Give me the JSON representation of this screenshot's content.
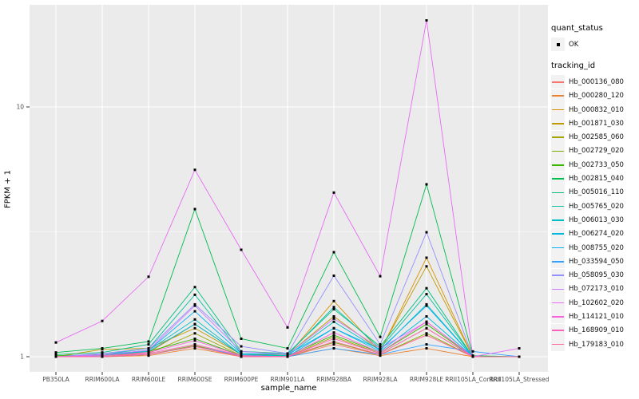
{
  "figure": {
    "background": "#FFFFFF",
    "panel_background": "#EBEBEB",
    "gridline_color": "#FFFFFF",
    "tick_color": "#333333",
    "tick_label_color": "#4D4D4D",
    "axis_title_color": "#000000",
    "point_color": "#000000"
  },
  "chart_data": {
    "type": "line",
    "title": "",
    "xlabel": "sample_name",
    "ylabel": "FPKM + 1",
    "y_scale": "log10",
    "y_ticks": [
      "1",
      "10"
    ],
    "y_minor": [
      3.1623
    ],
    "ylim": [
      0.87,
      25.5
    ],
    "grid": "major-and-minor",
    "legend_position": "right",
    "categories": [
      "PB350LA",
      "RRIM600LA",
      "RRIM600LE",
      "RRIM600SE",
      "RRIM600PE",
      "RRIM901LA",
      "RRIM928BA",
      "RRIM928LA",
      "RRIM928LE",
      "RRII105LA_Control",
      "RRII105LA_Stressed"
    ],
    "legend": {
      "quant_status_title": "quant_status",
      "quant_status_items": [
        {
          "label": "OK"
        }
      ],
      "tracking_title": "tracking_id"
    },
    "series": [
      {
        "name": "Hb_000136_080",
        "color": "#F8766D",
        "values": [
          1.0,
          1.0,
          1.02,
          1.1,
          1.0,
          1.0,
          1.12,
          1.02,
          1.22,
          1.0,
          1.0
        ]
      },
      {
        "name": "Hb_000280_120",
        "color": "#EA8331",
        "values": [
          1.0,
          1.0,
          1.01,
          1.08,
          1.0,
          1.0,
          1.08,
          1.01,
          1.08,
          1.0,
          1.0
        ]
      },
      {
        "name": "Hb_000832_010",
        "color": "#D89000",
        "values": [
          1.0,
          1.02,
          1.04,
          1.35,
          1.02,
          1.01,
          1.67,
          1.05,
          2.49,
          1.0,
          1.0
        ]
      },
      {
        "name": "Hb_001871_030",
        "color": "#C09B00",
        "values": [
          1.0,
          1.07,
          1.08,
          1.3,
          1.02,
          1.02,
          1.45,
          1.06,
          2.3,
          1.0,
          1.0
        ]
      },
      {
        "name": "Hb_002585_060",
        "color": "#A3A500",
        "values": [
          1.0,
          1.01,
          1.03,
          1.24,
          1.01,
          1.0,
          1.2,
          1.03,
          1.3,
          1.0,
          1.0
        ]
      },
      {
        "name": "Hb_002729_020",
        "color": "#7CAE00",
        "values": [
          1.0,
          1.0,
          1.02,
          1.11,
          1.0,
          1.0,
          1.14,
          1.02,
          1.24,
          1.0,
          1.0
        ]
      },
      {
        "name": "Hb_002733_050",
        "color": "#39B600",
        "values": [
          1.01,
          1.02,
          1.05,
          1.18,
          1.01,
          1.01,
          1.22,
          1.04,
          1.35,
          1.0,
          1.0
        ]
      },
      {
        "name": "Hb_002815_040",
        "color": "#00BB4E",
        "values": [
          1.04,
          1.08,
          1.15,
          3.9,
          1.18,
          1.08,
          2.62,
          1.2,
          4.9,
          1.01,
          1.0
        ]
      },
      {
        "name": "Hb_005016_110",
        "color": "#00BF7D",
        "values": [
          1.02,
          1.04,
          1.12,
          1.9,
          1.05,
          1.03,
          1.55,
          1.1,
          1.88,
          1.0,
          1.0
        ]
      },
      {
        "name": "Hb_005765_020",
        "color": "#00C1A3",
        "values": [
          1.0,
          1.02,
          1.08,
          1.77,
          1.03,
          1.02,
          1.58,
          1.08,
          1.78,
          1.0,
          1.0
        ]
      },
      {
        "name": "Hb_006013_030",
        "color": "#00BFC4",
        "values": [
          1.0,
          1.01,
          1.06,
          1.41,
          1.02,
          1.01,
          1.38,
          1.06,
          1.62,
          1.0,
          1.0
        ]
      },
      {
        "name": "Hb_006274_020",
        "color": "#00BAE0",
        "values": [
          1.0,
          1.01,
          1.05,
          1.35,
          1.02,
          1.0,
          1.3,
          1.05,
          1.45,
          1.0,
          1.0
        ]
      },
      {
        "name": "Hb_008755_020",
        "color": "#00B0F6",
        "values": [
          1.0,
          1.02,
          1.06,
          1.52,
          1.03,
          1.02,
          1.3,
          1.07,
          1.6,
          1.0,
          1.0
        ]
      },
      {
        "name": "Hb_033594_050",
        "color": "#35A2FF",
        "values": [
          1.0,
          1.0,
          1.02,
          1.1,
          1.01,
          1.0,
          1.08,
          1.02,
          1.12,
          1.05,
          1.0
        ]
      },
      {
        "name": "Hb_058095_030",
        "color": "#9590FF",
        "values": [
          1.0,
          1.03,
          1.08,
          1.62,
          1.1,
          1.03,
          2.11,
          1.12,
          3.15,
          1.0,
          1.0
        ]
      },
      {
        "name": "Hb_072173_010",
        "color": "#C77CFF",
        "values": [
          1.0,
          1.02,
          1.06,
          1.6,
          1.05,
          1.02,
          1.42,
          1.08,
          1.38,
          1.0,
          1.0
        ]
      },
      {
        "name": "Hb_102602_020",
        "color": "#E76BF3",
        "values": [
          1.14,
          1.39,
          2.09,
          5.6,
          2.68,
          1.31,
          4.54,
          2.1,
          22.2,
          1.0,
          1.08
        ]
      },
      {
        "name": "Hb_114121_010",
        "color": "#FA62DB",
        "values": [
          1.0,
          1.01,
          1.04,
          1.16,
          1.01,
          1.0,
          1.25,
          1.04,
          1.38,
          1.0,
          1.0
        ]
      },
      {
        "name": "Hb_168909_010",
        "color": "#FF62BC",
        "values": [
          1.0,
          1.0,
          1.03,
          1.12,
          1.01,
          1.0,
          1.18,
          1.03,
          1.3,
          1.0,
          1.0
        ]
      },
      {
        "name": "Hb_179183_010",
        "color": "#FF6A98",
        "values": [
          1.0,
          1.0,
          1.02,
          1.1,
          1.0,
          1.0,
          1.15,
          1.02,
          1.22,
          1.0,
          1.0
        ]
      }
    ]
  }
}
